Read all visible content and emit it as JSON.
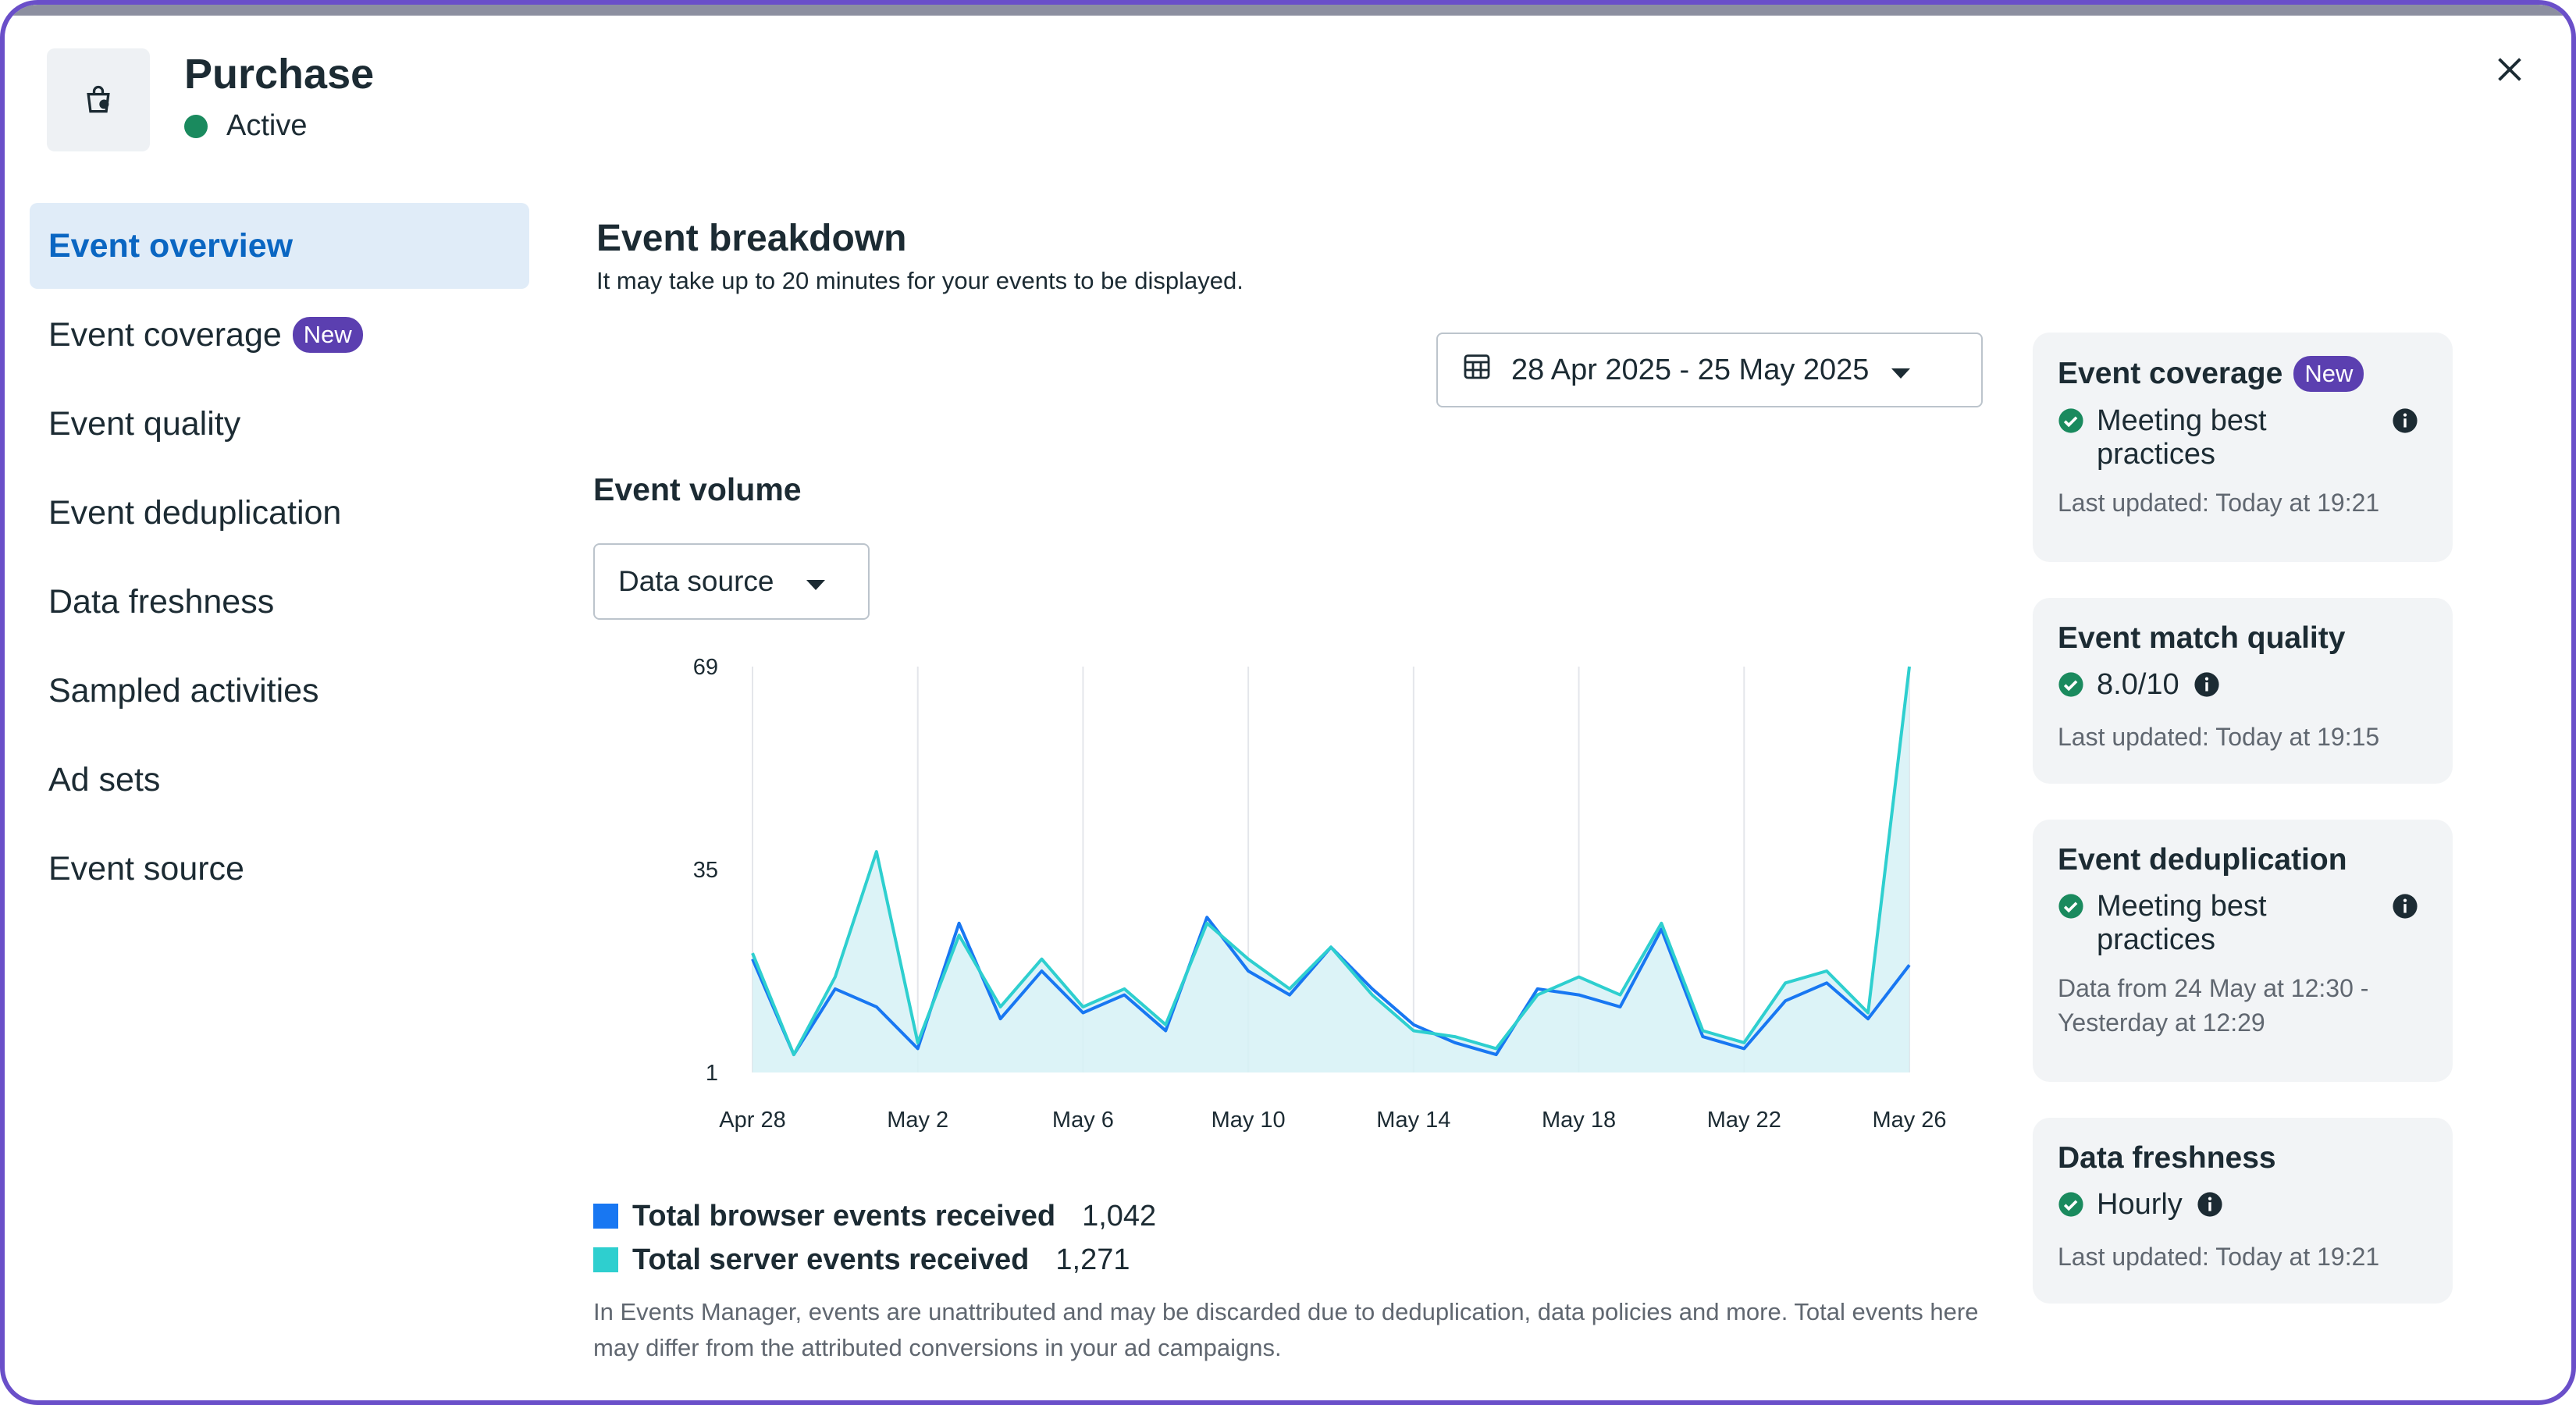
{
  "header": {
    "title": "Purchase",
    "status": "Active"
  },
  "nav": {
    "items": [
      {
        "label": "Event overview",
        "active": true
      },
      {
        "label": "Event coverage",
        "badge": "New"
      },
      {
        "label": "Event quality"
      },
      {
        "label": "Event deduplication"
      },
      {
        "label": "Data freshness"
      },
      {
        "label": "Sampled activities"
      },
      {
        "label": "Ad sets"
      },
      {
        "label": "Event source"
      }
    ]
  },
  "breakdown": {
    "title": "Event breakdown",
    "subtitle": "It may take up to 20 minutes for your events to be displayed.",
    "date_range": "28 Apr 2025 - 25 May 2025"
  },
  "volume": {
    "title": "Event volume",
    "source_dropdown": "Data source",
    "legend": [
      {
        "label": "Total browser events received",
        "value": "1,042",
        "color": "#1877f2"
      },
      {
        "label": "Total server events received",
        "value": "1,271",
        "color": "#2ecfcf"
      }
    ],
    "note": "In Events Manager, events are unattributed and may be discarded due to deduplication, data policies and more. Total events here may differ from the attributed conversions in your ad campaigns."
  },
  "chart_data": {
    "type": "line",
    "x_ticks": [
      "Apr 28",
      "May 2",
      "May 6",
      "May 10",
      "May 14",
      "May 18",
      "May 22",
      "May 26"
    ],
    "y_ticks": [
      1,
      35,
      69
    ],
    "ylim": [
      1,
      69
    ],
    "x_count": 29,
    "series": [
      {
        "name": "Total browser events received",
        "color": "#1877f2",
        "values": [
          20,
          4,
          15,
          12,
          5,
          26,
          10,
          18,
          11,
          14,
          8,
          27,
          18,
          14,
          22,
          15,
          9,
          6,
          4,
          15,
          14,
          12,
          25,
          7,
          5,
          13,
          16,
          10,
          19
        ]
      },
      {
        "name": "Total server events received",
        "color": "#2ecfcf",
        "values": [
          21,
          4,
          17,
          38,
          6,
          24,
          12,
          20,
          12,
          15,
          9,
          26,
          20,
          15,
          22,
          14,
          8,
          7,
          5,
          14,
          17,
          14,
          26,
          8,
          6,
          16,
          18,
          11,
          69
        ]
      }
    ]
  },
  "cards": [
    {
      "title": "Event coverage",
      "badge": "New",
      "status": "Meeting best practices",
      "meta": "Last updated: Today at 19:21"
    },
    {
      "title": "Event match quality",
      "status": "8.0/10",
      "meta": "Last updated: Today at 19:15"
    },
    {
      "title": "Event deduplication",
      "status": "Meeting best practices",
      "meta": "Data from 24 May at 12:30 - Yesterday at 12:29"
    },
    {
      "title": "Data freshness",
      "status": "Hourly",
      "meta": "Last updated: Today at 19:21"
    }
  ]
}
